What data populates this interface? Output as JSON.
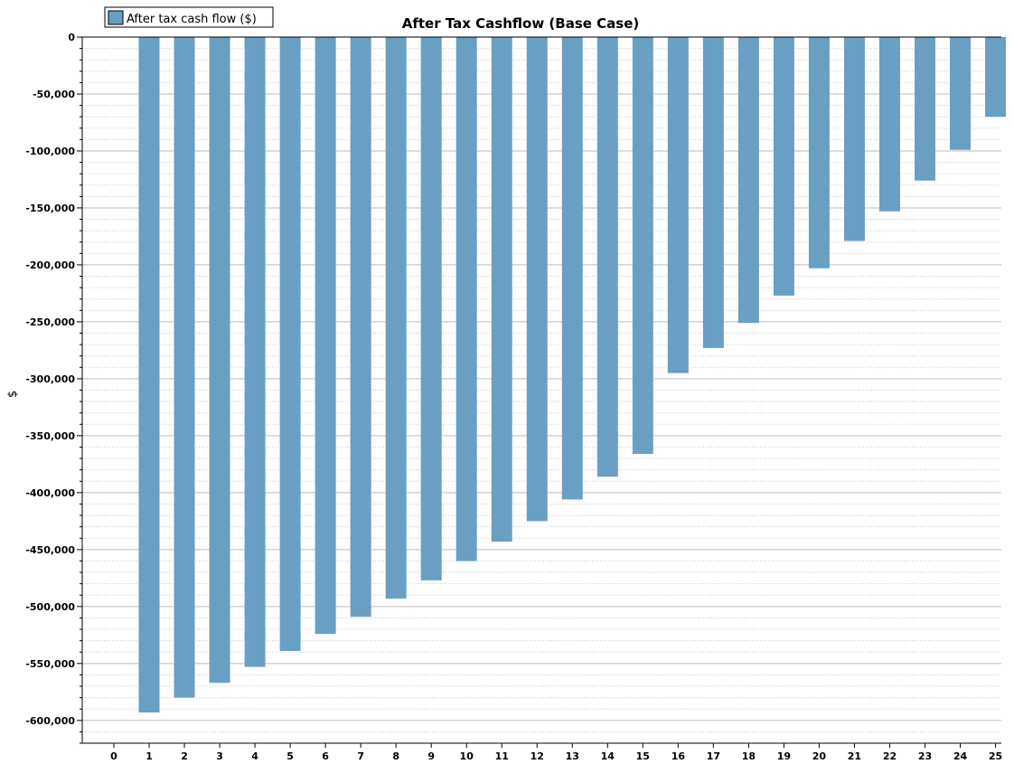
{
  "chart_data": {
    "type": "bar",
    "title": "After Tax Cashflow (Base Case)",
    "xlabel": "",
    "ylabel": "$",
    "legend": {
      "label": "After tax cash flow ($)",
      "placement": "top-left"
    },
    "categories": [
      "0",
      "1",
      "2",
      "3",
      "4",
      "5",
      "6",
      "7",
      "8",
      "9",
      "10",
      "11",
      "12",
      "13",
      "14",
      "15",
      "16",
      "17",
      "18",
      "19",
      "20",
      "21",
      "22",
      "23",
      "24",
      "25"
    ],
    "series": [
      {
        "name": "After tax cash flow ($)",
        "color": "#6a9fc4",
        "values": [
          0,
          -593000,
          -580000,
          -567000,
          -553000,
          -539000,
          -524000,
          -509000,
          -493000,
          -477000,
          -460000,
          -443000,
          -425000,
          -406000,
          -386000,
          -366000,
          -295000,
          -273000,
          -251000,
          -227000,
          -203000,
          -179000,
          -153000,
          -126000,
          -99000,
          -70000
        ]
      }
    ],
    "ylim": [
      -620000,
      0
    ],
    "yticks": [
      0,
      -50000,
      -100000,
      -150000,
      -200000,
      -250000,
      -300000,
      -350000,
      -400000,
      -450000,
      -500000,
      -550000,
      -600000
    ],
    "ytick_labels": [
      "0",
      "-50,000",
      "-100,000",
      "-150,000",
      "-200,000",
      "-250,000",
      "-300,000",
      "-350,000",
      "-400,000",
      "-450,000",
      "-500,000",
      "-550,000",
      "-600,000"
    ],
    "grid": true
  }
}
